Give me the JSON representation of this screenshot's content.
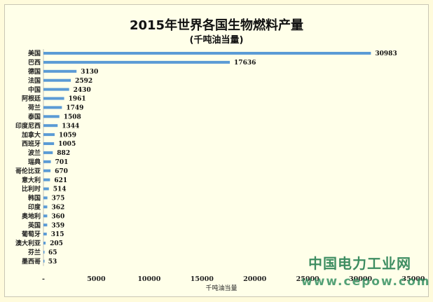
{
  "chart_data": {
    "type": "bar",
    "orientation": "horizontal",
    "title": "2015年世界各国生物燃料产量",
    "subtitle": "(千吨油当量)",
    "xlabel": "千吨油当量",
    "ylabel": "",
    "categories": [
      "美国",
      "巴西",
      "德国",
      "法国",
      "中国",
      "阿根廷",
      "荷兰",
      "泰国",
      "印度尼西",
      "加拿大",
      "西班牙",
      "波兰",
      "瑞典",
      "哥伦比亚",
      "意大利",
      "比利时",
      "韩国",
      "印度",
      "奥地利",
      "英国",
      "葡萄牙",
      "澳大利亚",
      "芬兰",
      "墨西哥"
    ],
    "values": [
      30983,
      17636,
      3130,
      2592,
      2430,
      1961,
      1749,
      1508,
      1344,
      1059,
      1005,
      882,
      701,
      670,
      621,
      514,
      375,
      362,
      360,
      359,
      315,
      205,
      65,
      53
    ],
    "value_labels": [
      "30983",
      "17636",
      "3130",
      "2592",
      "2430",
      "1961",
      "1749",
      "1508",
      "1344",
      "1059",
      "1005",
      "882",
      "701",
      "670",
      "621",
      "514",
      "375",
      "362",
      "360",
      "359",
      "315",
      "205",
      "65",
      "53"
    ],
    "xticks": [
      "-",
      "5000",
      "10000",
      "15000",
      "20000",
      "25000",
      "30000",
      "35000"
    ],
    "xlim": [
      0,
      35000
    ],
    "grid": false,
    "legend": "none",
    "bar_color": "#5b9bd5"
  },
  "watermark": {
    "cn": "中国电力工业网",
    "url": "www.cepow.com"
  }
}
